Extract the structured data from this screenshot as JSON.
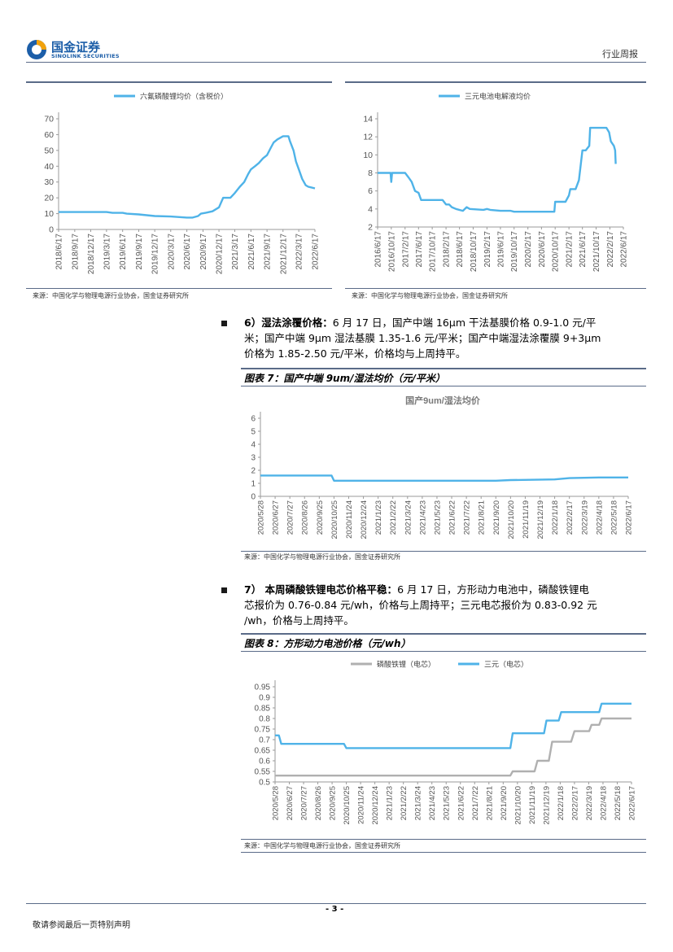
{
  "header": {
    "logo_cn": "国金证券",
    "logo_en": "SINOLINK SECURITIES",
    "report_type": "行业周报"
  },
  "source_text": "来源：中国化学与物理电源行业协会，国金证券研究所",
  "sec6": {
    "bold": "6）湿法涂覆价格：",
    "line1_rest": "6 月 17 日，国产中端 16μm 干法基膜价格 0.9-1.0 元/平",
    "line2": "米；国产中端 9μm 湿法基膜 1.35-1.6 元/平米；国产中端湿法涂覆膜 9+3μm",
    "line3": "价格为 1.85-2.50 元/平米，价格均与上周持平。"
  },
  "sec7": {
    "bold": "7） 本周磷酸铁锂电芯价格平稳：",
    "line1_rest": "6 月 17 日，方形动力电池中，磷酸铁锂电",
    "line2": "芯报价为 0.76-0.84 元/wh，价格与上周持平；三元电芯报价为 0.83-0.92 元",
    "line3": "/wh，价格与上周持平。"
  },
  "fig7_title": "图表 7：国产中端 9um/湿法均价（元/平米）",
  "fig8_title": "图表 8：方形动力电池价格（元/wh）",
  "footer": {
    "disclaimer": "敬请参阅最后一页特别声明",
    "page": "- 3 -"
  },
  "colors": {
    "blue": "#4fb3e8",
    "gray": "#b0b0b0",
    "rule": "#5a6b88",
    "logo": "#1c5ea8"
  },
  "chart_data": [
    {
      "id": "c1",
      "type": "line",
      "title": "",
      "series": [
        {
          "name": "六氟磷酸锂均价（含税价）",
          "color": "#4fb3e8",
          "points": [
            [
              "2018-06-17",
              11
            ],
            [
              "2018-09-17",
              11
            ],
            [
              "2018-12-17",
              11
            ],
            [
              "2019-03-17",
              11
            ],
            [
              "2019-04-20",
              10.5
            ],
            [
              "2019-06-17",
              10.5
            ],
            [
              "2019-07-10",
              10
            ],
            [
              "2019-09-17",
              9.5
            ],
            [
              "2019-12-17",
              8.5
            ],
            [
              "2020-03-17",
              8.2
            ],
            [
              "2020-06-17",
              7.5
            ],
            [
              "2020-07-20",
              7.5
            ],
            [
              "2020-08-20",
              8.5
            ],
            [
              "2020-09-05",
              10
            ],
            [
              "2020-10-01",
              10.5
            ],
            [
              "2020-11-10",
              11.5
            ],
            [
              "2020-12-17",
              14
            ],
            [
              "2021-01-10",
              20
            ],
            [
              "2021-02-20",
              20
            ],
            [
              "2021-03-17",
              23
            ],
            [
              "2021-04-15",
              27
            ],
            [
              "2021-05-10",
              30
            ],
            [
              "2021-06-01",
              35
            ],
            [
              "2021-06-17",
              38
            ],
            [
              "2021-07-10",
              40
            ],
            [
              "2021-08-01",
              42
            ],
            [
              "2021-08-25",
              45
            ],
            [
              "2021-09-17",
              47
            ],
            [
              "2021-10-10",
              52
            ],
            [
              "2021-10-25",
              55
            ],
            [
              "2021-11-15",
              57
            ],
            [
              "2021-12-17",
              59
            ],
            [
              "2022-01-17",
              59
            ],
            [
              "2022-01-25",
              56
            ],
            [
              "2022-02-15",
              50
            ],
            [
              "2022-03-01",
              43
            ],
            [
              "2022-03-17",
              38
            ],
            [
              "2022-04-05",
              32
            ],
            [
              "2022-04-25",
              28
            ],
            [
              "2022-05-10",
              27
            ],
            [
              "2022-06-17",
              26
            ]
          ]
        }
      ],
      "y_ticks": [
        0,
        10,
        20,
        30,
        40,
        50,
        60,
        70
      ],
      "ylim": [
        0,
        70
      ],
      "x_ticks": [
        "2018/6/17",
        "2018/9/17",
        "2018/12/17",
        "2019/3/17",
        "2019/6/17",
        "2019/9/17",
        "2019/12/17",
        "2020/3/17",
        "2020/6/17",
        "2020/9/17",
        "2020/12/17",
        "2021/3/17",
        "2021/6/17",
        "2021/9/17",
        "2021/12/17",
        "2022/3/17",
        "2022/6/17"
      ],
      "xlim": [
        "2018-06-17",
        "2022-06-17"
      ],
      "grid": false,
      "legend": "top"
    },
    {
      "id": "c2",
      "type": "line",
      "title": "",
      "series": [
        {
          "name": "三元电池电解液均价",
          "color": "#4fb3e8",
          "points": [
            [
              "2016-06-17",
              8
            ],
            [
              "2016-10-10",
              8
            ],
            [
              "2016-10-17",
              7
            ],
            [
              "2016-10-24",
              8
            ],
            [
              "2017-02-17",
              8
            ],
            [
              "2017-03-20",
              7.5
            ],
            [
              "2017-04-17",
              7
            ],
            [
              "2017-05-17",
              6
            ],
            [
              "2017-06-17",
              5.8
            ],
            [
              "2017-07-10",
              5
            ],
            [
              "2017-10-17",
              5
            ],
            [
              "2018-01-17",
              5
            ],
            [
              "2018-02-17",
              4.5
            ],
            [
              "2018-03-17",
              4.5
            ],
            [
              "2018-04-10",
              4.2
            ],
            [
              "2018-05-17",
              4
            ],
            [
              "2018-07-17",
              3.8
            ],
            [
              "2018-08-20",
              4.2
            ],
            [
              "2018-09-17",
              4
            ],
            [
              "2019-01-17",
              3.9
            ],
            [
              "2019-02-17",
              4
            ],
            [
              "2019-03-17",
              3.9
            ],
            [
              "2019-06-17",
              3.8
            ],
            [
              "2019-09-17",
              3.8
            ],
            [
              "2019-10-17",
              3.7
            ],
            [
              "2020-06-17",
              3.7
            ],
            [
              "2020-10-10",
              3.7
            ],
            [
              "2020-10-17",
              4.8
            ],
            [
              "2021-01-17",
              4.8
            ],
            [
              "2021-02-17",
              5.5
            ],
            [
              "2021-03-01",
              6.2
            ],
            [
              "2021-04-17",
              6.2
            ],
            [
              "2021-05-17",
              7.2
            ],
            [
              "2021-06-17",
              10.5
            ],
            [
              "2021-07-17",
              10.5
            ],
            [
              "2021-08-17",
              11
            ],
            [
              "2021-08-25",
              13
            ],
            [
              "2021-10-17",
              13
            ],
            [
              "2022-01-17",
              13
            ],
            [
              "2022-02-10",
              12.5
            ],
            [
              "2022-02-25",
              11.5
            ],
            [
              "2022-03-25",
              11
            ],
            [
              "2022-04-05",
              10.5
            ],
            [
              "2022-04-10",
              9
            ]
          ]
        }
      ],
      "y_ticks": [
        2,
        4,
        6,
        8,
        10,
        12,
        14
      ],
      "ylim": [
        2,
        14
      ],
      "x_ticks": [
        "2016/6/17",
        "2016/10/17",
        "2017/2/17",
        "2017/6/17",
        "2017/10/17",
        "2018/2/17",
        "2018/6/17",
        "2018/10/17",
        "2019/2/17",
        "2019/6/17",
        "2019/10/17",
        "2020/2/17",
        "2020/6/17",
        "2020/10/17",
        "2021/2/17",
        "2021/6/17",
        "2021/10/17",
        "2022/2/17",
        "2022/6/17"
      ],
      "xlim": [
        "2016-06-17",
        "2022-06-17"
      ],
      "grid": false,
      "legend": "top"
    },
    {
      "id": "c3",
      "type": "line",
      "title": "国产9um/湿法均价",
      "series": [
        {
          "name": "国产9um/湿法均价",
          "color": "#4fb3e8",
          "points": [
            [
              "2020-05-28",
              1.6
            ],
            [
              "2020-10-20",
              1.6
            ],
            [
              "2020-10-25",
              1.2
            ],
            [
              "2021-09-20",
              1.2
            ],
            [
              "2021-10-20",
              1.25
            ],
            [
              "2022-01-18",
              1.3
            ],
            [
              "2022-02-17",
              1.4
            ],
            [
              "2022-04-18",
              1.45
            ],
            [
              "2022-06-17",
              1.45
            ]
          ]
        }
      ],
      "y_ticks": [
        0,
        1,
        2,
        3,
        4,
        5,
        6
      ],
      "ylim": [
        0,
        6
      ],
      "x_ticks": [
        "2020/5/28",
        "2020/6/27",
        "2020/7/27",
        "2020/8/26",
        "2020/9/25",
        "2020/10/25",
        "2020/11/24",
        "2020/12/24",
        "2021/1/23",
        "2021/2/22",
        "2021/3/24",
        "2021/4/23",
        "2021/5/23",
        "2021/6/22",
        "2021/7/22",
        "2021/8/21",
        "2021/9/20",
        "2021/10/20",
        "2021/11/19",
        "2021/12/19",
        "2022/1/18",
        "2022/2/17",
        "2022/3/19",
        "2022/4/18",
        "2022/5/18",
        "2022/6/17"
      ],
      "xlim": [
        "2020-05-28",
        "2022-06-17"
      ],
      "grid": false,
      "legend": "none"
    },
    {
      "id": "c4",
      "type": "line",
      "title": "",
      "series": [
        {
          "name": "磷酸铁锂（电芯）",
          "color": "#b0b0b0",
          "points": [
            [
              "2020-05-28",
              0.53
            ],
            [
              "2021-10-05",
              0.53
            ],
            [
              "2021-10-10",
              0.55
            ],
            [
              "2021-11-25",
              0.55
            ],
            [
              "2021-12-01",
              0.6
            ],
            [
              "2021-12-25",
              0.6
            ],
            [
              "2022-01-01",
              0.69
            ],
            [
              "2022-02-10",
              0.69
            ],
            [
              "2022-02-17",
              0.74
            ],
            [
              "2022-03-20",
              0.74
            ],
            [
              "2022-03-25",
              0.77
            ],
            [
              "2022-04-10",
              0.77
            ],
            [
              "2022-04-15",
              0.8
            ],
            [
              "2022-06-17",
              0.8
            ]
          ]
        },
        {
          "name": "三元（电芯）",
          "color": "#4fb3e8",
          "points": [
            [
              "2020-05-28",
              0.72
            ],
            [
              "2020-06-05",
              0.72
            ],
            [
              "2020-06-10",
              0.68
            ],
            [
              "2020-10-20",
              0.68
            ],
            [
              "2020-10-25",
              0.66
            ],
            [
              "2021-10-05",
              0.66
            ],
            [
              "2021-10-10",
              0.73
            ],
            [
              "2021-12-15",
              0.73
            ],
            [
              "2021-12-20",
              0.79
            ],
            [
              "2022-01-15",
              0.79
            ],
            [
              "2022-01-20",
              0.83
            ],
            [
              "2022-04-10",
              0.83
            ],
            [
              "2022-04-15",
              0.87
            ],
            [
              "2022-06-17",
              0.87
            ]
          ]
        }
      ],
      "y_ticks": [
        0.5,
        0.55,
        0.6,
        0.65,
        0.7,
        0.75,
        0.8,
        0.85,
        0.9,
        0.95
      ],
      "ylim": [
        0.5,
        0.95
      ],
      "x_ticks": [
        "2020/5/28",
        "2020/6/27",
        "2020/7/27",
        "2020/8/26",
        "2020/9/25",
        "2020/10/25",
        "2020/11/24",
        "2020/12/24",
        "2021/1/23",
        "2021/2/22",
        "2021/3/24",
        "2021/4/23",
        "2021/5/23",
        "2021/6/22",
        "2021/7/22",
        "2021/8/21",
        "2021/9/20",
        "2021/10/20",
        "2021/11/19",
        "2021/12/19",
        "2022/1/18",
        "2022/2/17",
        "2022/3/19",
        "2022/4/18",
        "2022/5/18",
        "2022/6/17"
      ],
      "xlim": [
        "2020-05-28",
        "2022-06-17"
      ],
      "grid": false,
      "legend": "top"
    }
  ]
}
